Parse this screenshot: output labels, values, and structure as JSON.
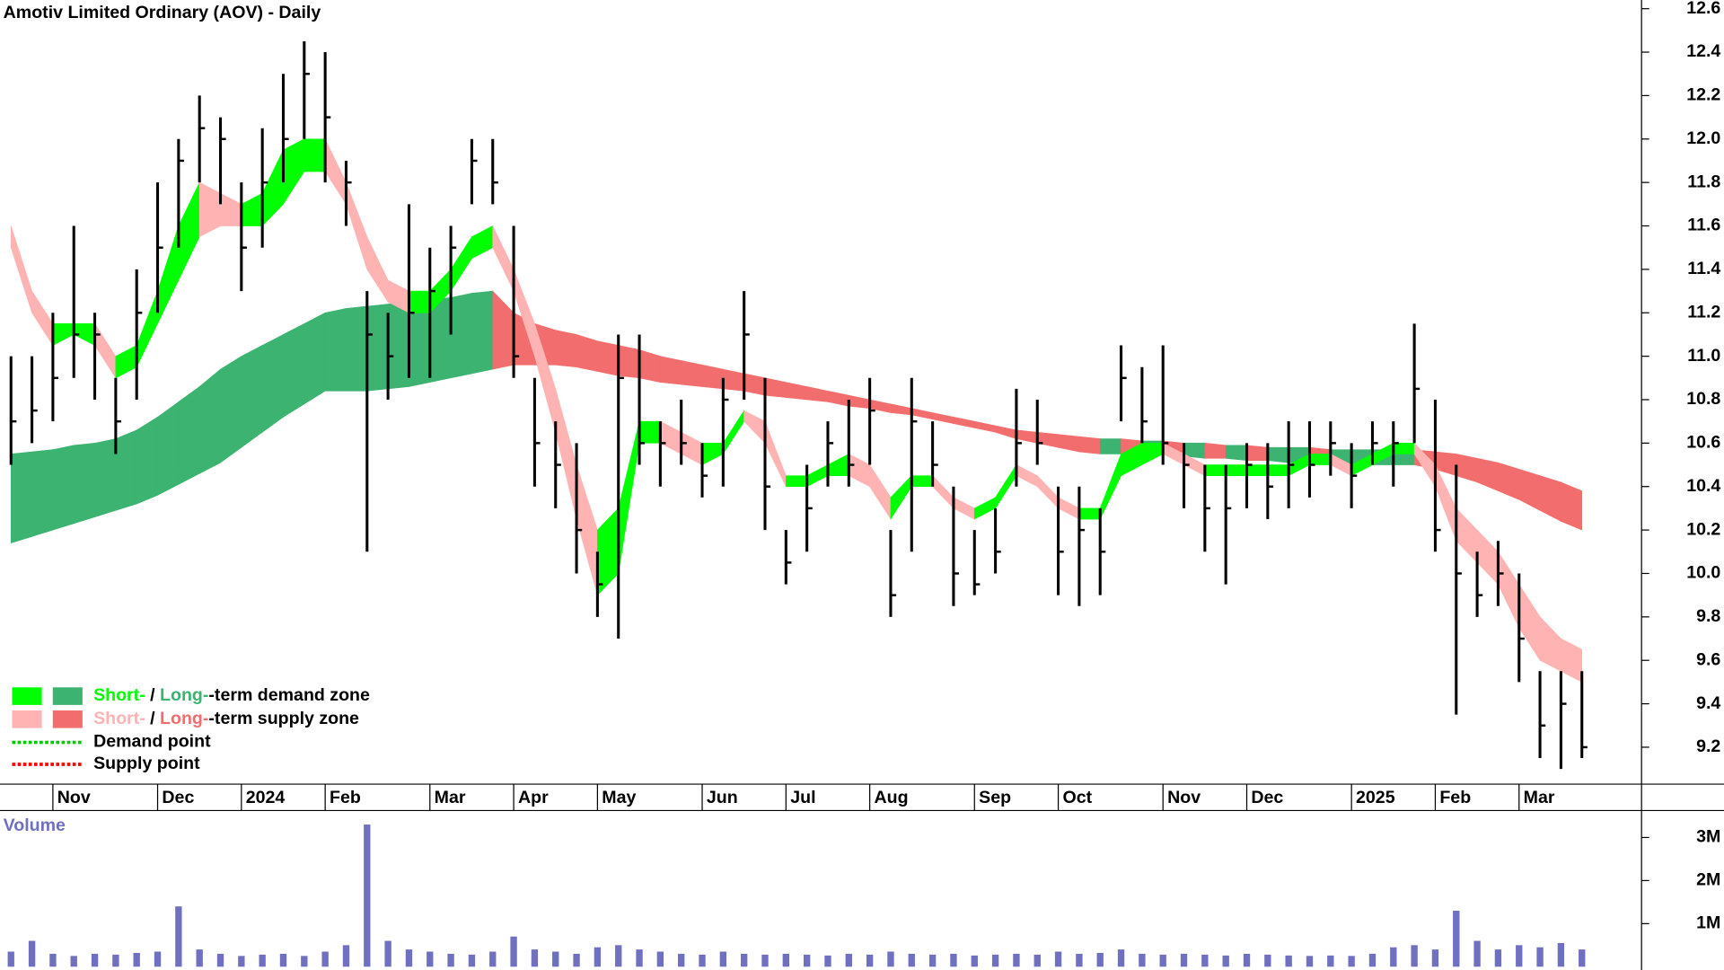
{
  "chart_data": {
    "type": "ohlc",
    "title": "Amotiv Limited Ordinary (AOV) - Daily",
    "categories": [
      null,
      null,
      "Nov",
      null,
      null,
      null,
      null,
      "Dec",
      null,
      null,
      null,
      "2024",
      null,
      null,
      null,
      "Feb",
      null,
      null,
      null,
      null,
      "Mar",
      null,
      null,
      null,
      "Apr",
      null,
      null,
      null,
      "May",
      null,
      null,
      null,
      null,
      "Jun",
      null,
      null,
      null,
      "Jul",
      null,
      null,
      null,
      "Aug",
      null,
      null,
      null,
      null,
      "Sep",
      null,
      null,
      null,
      "Oct",
      null,
      null,
      null,
      null,
      "Nov",
      null,
      null,
      null,
      "Dec",
      null,
      null,
      null,
      null,
      "2025",
      null,
      null,
      null,
      "Feb",
      null,
      null,
      null,
      "Mar",
      null,
      null,
      null
    ],
    "high": [
      11.0,
      11.0,
      11.2,
      11.6,
      11.2,
      10.9,
      11.4,
      11.8,
      12.0,
      12.2,
      12.1,
      11.8,
      12.05,
      12.3,
      12.45,
      12.4,
      11.9,
      11.3,
      11.2,
      11.7,
      11.5,
      11.6,
      12.0,
      12.0,
      11.6,
      10.9,
      10.7,
      10.6,
      10.1,
      11.1,
      11.1,
      10.7,
      10.8,
      10.6,
      10.9,
      11.3,
      10.9,
      10.2,
      10.5,
      10.7,
      10.8,
      10.9,
      10.2,
      10.9,
      10.7,
      10.4,
      10.2,
      10.3,
      10.85,
      10.8,
      10.4,
      10.4,
      10.3,
      11.05,
      10.95,
      11.05,
      10.6,
      10.5,
      10.5,
      10.6,
      10.6,
      10.7,
      10.7,
      10.7,
      10.6,
      10.7,
      10.7,
      11.15,
      10.8,
      10.5,
      10.1,
      10.15,
      10.0,
      9.55,
      9.55,
      9.55
    ],
    "low": [
      10.5,
      10.6,
      10.7,
      10.9,
      10.8,
      10.55,
      10.8,
      11.2,
      11.5,
      11.8,
      11.7,
      11.3,
      11.5,
      11.8,
      12.0,
      11.8,
      11.6,
      10.1,
      10.8,
      10.9,
      10.9,
      11.1,
      11.7,
      11.7,
      10.9,
      10.4,
      10.3,
      10.0,
      9.8,
      9.7,
      10.5,
      10.4,
      10.5,
      10.35,
      10.4,
      10.8,
      10.2,
      9.95,
      10.1,
      10.4,
      10.4,
      10.5,
      9.8,
      10.1,
      10.4,
      9.85,
      9.9,
      10.0,
      10.4,
      10.5,
      9.9,
      9.85,
      9.9,
      10.7,
      10.6,
      10.5,
      10.3,
      10.1,
      9.95,
      10.3,
      10.25,
      10.3,
      10.35,
      10.45,
      10.3,
      10.5,
      10.4,
      10.6,
      10.1,
      9.35,
      9.8,
      9.85,
      9.5,
      9.15,
      9.1,
      9.15
    ],
    "close": [
      10.7,
      10.75,
      10.9,
      11.1,
      11.1,
      10.7,
      11.2,
      11.5,
      11.9,
      12.05,
      12.0,
      11.5,
      11.8,
      12.0,
      12.3,
      12.1,
      11.8,
      11.1,
      11.0,
      11.2,
      11.3,
      11.5,
      11.9,
      11.8,
      11.0,
      10.6,
      10.5,
      10.2,
      9.95,
      10.9,
      10.6,
      10.6,
      10.6,
      10.45,
      10.8,
      11.1,
      10.4,
      10.05,
      10.3,
      10.6,
      10.5,
      10.75,
      9.9,
      10.7,
      10.5,
      10.0,
      9.95,
      10.1,
      10.6,
      10.6,
      10.1,
      10.2,
      10.1,
      10.9,
      10.7,
      10.6,
      10.5,
      10.3,
      10.3,
      10.5,
      10.4,
      10.5,
      10.5,
      10.6,
      10.45,
      10.6,
      10.6,
      10.85,
      10.2,
      10.0,
      9.9,
      10.0,
      9.7,
      9.3,
      9.4,
      9.2
    ],
    "color": "#000000",
    "bands": {
      "short_upper": [
        11.6,
        11.3,
        11.15,
        11.15,
        11.15,
        11.0,
        11.05,
        11.3,
        11.6,
        11.8,
        11.75,
        11.7,
        11.75,
        11.95,
        12.0,
        12.0,
        11.8,
        11.55,
        11.35,
        11.3,
        11.3,
        11.4,
        11.55,
        11.6,
        11.4,
        11.15,
        10.85,
        10.5,
        10.2,
        10.3,
        10.7,
        10.7,
        10.65,
        10.6,
        10.6,
        10.75,
        10.7,
        10.45,
        10.45,
        10.5,
        10.55,
        10.5,
        10.35,
        10.45,
        10.45,
        10.35,
        10.3,
        10.35,
        10.5,
        10.45,
        10.35,
        10.3,
        10.3,
        10.55,
        10.6,
        10.6,
        10.55,
        10.5,
        10.5,
        10.5,
        10.5,
        10.5,
        10.55,
        10.55,
        10.5,
        10.55,
        10.6,
        10.6,
        10.5,
        10.3,
        10.2,
        10.1,
        9.95,
        9.8,
        9.7,
        9.65
      ],
      "short_lower": [
        11.5,
        11.2,
        11.05,
        11.1,
        11.05,
        10.9,
        10.95,
        11.15,
        11.35,
        11.55,
        11.6,
        11.6,
        11.6,
        11.7,
        11.85,
        11.85,
        11.7,
        11.4,
        11.25,
        11.2,
        11.2,
        11.3,
        11.45,
        11.5,
        11.3,
        11.0,
        10.65,
        10.25,
        9.9,
        10.0,
        10.6,
        10.6,
        10.55,
        10.5,
        10.55,
        10.7,
        10.6,
        10.4,
        10.4,
        10.45,
        10.45,
        10.4,
        10.25,
        10.4,
        10.4,
        10.3,
        10.25,
        10.3,
        10.45,
        10.4,
        10.3,
        10.25,
        10.25,
        10.45,
        10.5,
        10.55,
        10.5,
        10.45,
        10.45,
        10.45,
        10.45,
        10.45,
        10.5,
        10.5,
        10.45,
        10.5,
        10.55,
        10.55,
        10.4,
        10.15,
        10.05,
        9.95,
        9.75,
        9.6,
        9.55,
        9.5
      ],
      "long_upper": [
        10.55,
        10.56,
        10.57,
        10.59,
        10.6,
        10.62,
        10.66,
        10.72,
        10.79,
        10.86,
        10.94,
        11.0,
        11.05,
        11.1,
        11.15,
        11.2,
        11.22,
        11.23,
        11.24,
        11.25,
        11.26,
        11.27,
        11.29,
        11.3,
        11.2,
        11.15,
        11.12,
        11.1,
        11.07,
        11.05,
        11.03,
        11.0,
        10.98,
        10.96,
        10.94,
        10.92,
        10.9,
        10.88,
        10.86,
        10.84,
        10.82,
        10.8,
        10.78,
        10.76,
        10.74,
        10.72,
        10.7,
        10.68,
        10.66,
        10.65,
        10.64,
        10.63,
        10.62,
        10.62,
        10.61,
        10.61,
        10.6,
        10.6,
        10.59,
        10.59,
        10.58,
        10.58,
        10.58,
        10.57,
        10.57,
        10.57,
        10.57,
        10.57,
        10.56,
        10.55,
        10.53,
        10.51,
        10.48,
        10.45,
        10.42,
        10.38
      ],
      "long_lower": [
        10.14,
        10.17,
        10.2,
        10.23,
        10.26,
        10.29,
        10.32,
        10.36,
        10.41,
        10.46,
        10.51,
        10.58,
        10.65,
        10.72,
        10.78,
        10.84,
        10.84,
        10.84,
        10.85,
        10.86,
        10.88,
        10.9,
        10.92,
        10.94,
        10.96,
        10.96,
        10.96,
        10.95,
        10.93,
        10.91,
        10.9,
        10.88,
        10.87,
        10.86,
        10.85,
        10.84,
        10.82,
        10.81,
        10.8,
        10.79,
        10.77,
        10.76,
        10.74,
        10.73,
        10.71,
        10.69,
        10.67,
        10.65,
        10.62,
        10.6,
        10.58,
        10.56,
        10.55,
        10.55,
        10.55,
        10.55,
        10.54,
        10.53,
        10.53,
        10.52,
        10.52,
        10.51,
        10.51,
        10.5,
        10.5,
        10.5,
        10.5,
        10.5,
        10.48,
        10.45,
        10.42,
        10.38,
        10.34,
        10.29,
        10.24,
        10.2
      ]
    },
    "ylim": [
      9.03,
      12.64
    ],
    "yticks": [
      9.2,
      9.4,
      9.6,
      9.8,
      {
        "value": 10.0,
        "label": "10.0"
      },
      10.2,
      10.4,
      10.6,
      10.8,
      {
        "value": 11.0,
        "label": "11.0"
      },
      11.2,
      11.4,
      11.6,
      11.8,
      {
        "value": 12.0,
        "label": "12.0"
      },
      12.2,
      12.4,
      12.6
    ],
    "legend": [
      {
        "short": "Short-",
        "sep": " / ",
        "long": "Long-",
        "rest": "-term demand zone",
        "short_color": "#00ff00",
        "long_color": "#3cb371"
      },
      {
        "short": "Short-",
        "sep": " / ",
        "long": "Long-",
        "rest": "-term supply zone",
        "short_color": "#ffb3b3",
        "long_color": "#f26d6d"
      }
    ],
    "points": [
      {
        "label": "Demand point",
        "color": "#00cc00"
      },
      {
        "label": "Supply point",
        "color": "#ff0000"
      }
    ],
    "volume": {
      "label": "Volume",
      "color": "#7070c0",
      "values": [
        350000,
        600000,
        300000,
        250000,
        300000,
        280000,
        320000,
        350000,
        1400000,
        400000,
        300000,
        250000,
        280000,
        300000,
        250000,
        350000,
        500000,
        3300000,
        600000,
        400000,
        350000,
        300000,
        280000,
        350000,
        700000,
        400000,
        350000,
        300000,
        450000,
        500000,
        400000,
        350000,
        300000,
        280000,
        350000,
        300000,
        280000,
        300000,
        280000,
        260000,
        300000,
        280000,
        350000,
        300000,
        280000,
        300000,
        260000,
        280000,
        300000,
        280000,
        350000,
        300000,
        320000,
        400000,
        300000,
        280000,
        300000,
        280000,
        260000,
        300000,
        280000,
        260000,
        250000,
        260000,
        250000,
        300000,
        450000,
        500000,
        400000,
        1300000,
        600000,
        400000,
        500000,
        450000,
        550000,
        400000
      ],
      "ylim": [
        0,
        3600000
      ],
      "yticks": [
        {
          "value": 1000000,
          "label": "1M"
        },
        {
          "value": 2000000,
          "label": "2M"
        },
        {
          "value": 3000000,
          "label": "3M"
        }
      ]
    }
  }
}
